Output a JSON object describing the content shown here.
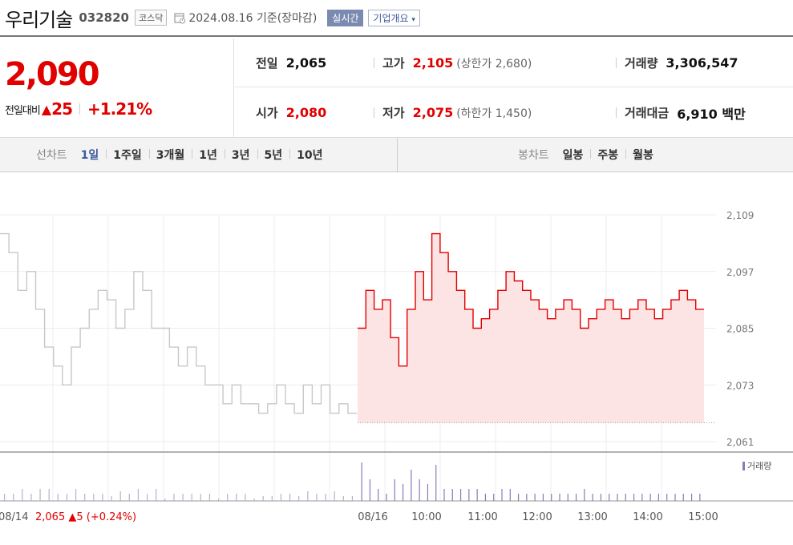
{
  "header": {
    "name": "우리기술",
    "code": "032820",
    "market": "코스닥",
    "date": "2024.08.16",
    "basis": "기준(장마감)",
    "realtime_label": "실시간",
    "overview_label": "기업개요"
  },
  "price": {
    "current": "2,090",
    "change_label": "전일대비",
    "change_amount": "25",
    "change_rate": "+1.21%"
  },
  "info": {
    "prev_close_label": "전일",
    "prev_close": "2,065",
    "high_label": "고가",
    "high": "2,105",
    "upper_limit": "(상한가 2,680)",
    "volume_label": "거래량",
    "volume": "3,306,547",
    "open_label": "시가",
    "open": "2,080",
    "low_label": "저가",
    "low": "2,075",
    "lower_limit": "(하한가 1,450)",
    "amount_label": "거래대금",
    "amount": "6,910 백만"
  },
  "tabs": {
    "line_label": "선차트",
    "line_tabs": [
      "1일",
      "1주일",
      "3개월",
      "1년",
      "3년",
      "5년",
      "10년"
    ],
    "candle_label": "봉차트",
    "candle_tabs": [
      "일봉",
      "주봉",
      "월봉"
    ]
  },
  "colors": {
    "up": "#e10000",
    "prev": "#c8c8c8",
    "fill": "#fde4e4",
    "volume": "#8a7ab8",
    "active_tab": "#3d5a9e"
  },
  "chart_data": {
    "type": "line",
    "y_ticks": [
      "2,109",
      "2,097",
      "2,085",
      "2,073",
      "2,061"
    ],
    "y_tick_values": [
      2109,
      2097,
      2085,
      2073,
      2061
    ],
    "ylim": [
      2061,
      2109
    ],
    "x_ticks": [
      "08/16",
      "10:00",
      "11:00",
      "12:00",
      "13:00",
      "14:00",
      "15:00"
    ],
    "prev_day_label": "08/14",
    "prev_day_close": "2,065",
    "prev_day_change": "▲5",
    "prev_day_rate": "(+0.24%)",
    "base_price": 2065,
    "legend_volume": "거래량",
    "series": [
      {
        "session": "prev",
        "values": [
          2105,
          2101,
          2093,
          2097,
          2089,
          2081,
          2077,
          2073,
          2081,
          2085,
          2089,
          2093,
          2091,
          2085,
          2089,
          2097,
          2093,
          2085,
          2085,
          2081,
          2077,
          2081,
          2077,
          2073,
          2073,
          2069,
          2073,
          2069,
          2069,
          2067,
          2069,
          2073,
          2069,
          2067,
          2073,
          2069,
          2073,
          2067,
          2069,
          2067
        ]
      },
      {
        "session": "today",
        "values": [
          2085,
          2093,
          2089,
          2091,
          2083,
          2077,
          2089,
          2097,
          2091,
          2105,
          2101,
          2097,
          2093,
          2089,
          2085,
          2087,
          2089,
          2093,
          2097,
          2095,
          2093,
          2091,
          2089,
          2087,
          2089,
          2091,
          2089,
          2085,
          2087,
          2089,
          2091,
          2089,
          2087,
          2089,
          2091,
          2089,
          2087,
          2089,
          2091,
          2093,
          2091,
          2089
        ]
      }
    ]
  }
}
